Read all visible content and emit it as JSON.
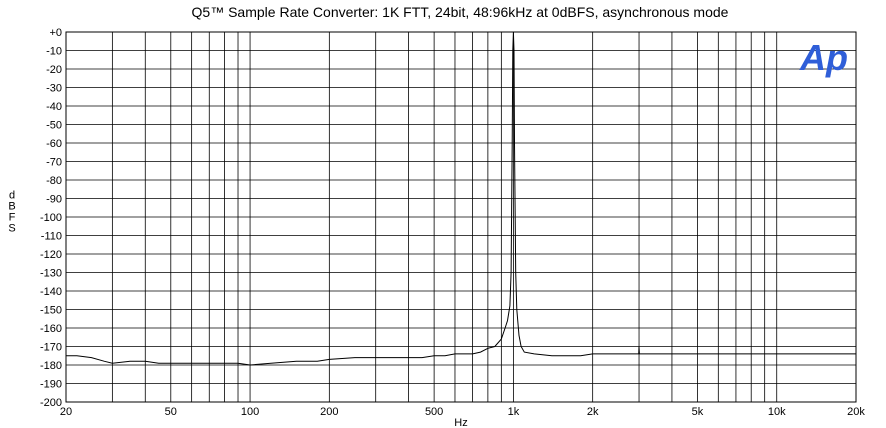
{
  "chart_data": {
    "type": "line",
    "title": "Q5™ Sample Rate Converter: 1K FTT, 24bit, 48:96kHz at 0dBFS, asynchronous mode",
    "xlabel": "Hz",
    "ylabel": "dBFS",
    "x_scale": "log",
    "xlim": [
      20,
      20000
    ],
    "ylim": [
      -200,
      0
    ],
    "grid": true,
    "x_ticks": [
      20,
      50,
      100,
      200,
      500,
      1000,
      2000,
      5000,
      10000,
      20000
    ],
    "x_tick_labels": [
      "20",
      "50",
      "100",
      "200",
      "500",
      "1k",
      "2k",
      "5k",
      "10k",
      "20k"
    ],
    "y_ticks": [
      0,
      -10,
      -20,
      -30,
      -40,
      -50,
      -60,
      -70,
      -80,
      -90,
      -100,
      -110,
      -120,
      -130,
      -140,
      -150,
      -160,
      -170,
      -180,
      -190,
      -200
    ],
    "y_tick_labels": [
      "+0",
      "-10",
      "-20",
      "-30",
      "-40",
      "-50",
      "-60",
      "-70",
      "-80",
      "-90",
      "-100",
      "-110",
      "-120",
      "-130",
      "-140",
      "-150",
      "-160",
      "-170",
      "-180",
      "-190",
      "-200"
    ],
    "logo_text": "Ap",
    "line_color": "#000000",
    "logo_color": "#2f5ed8",
    "series": [
      {
        "x": [
          20,
          22,
          25,
          28,
          30,
          35,
          40,
          45,
          50,
          60,
          70,
          80,
          90,
          100,
          120,
          150,
          180,
          200,
          250,
          300,
          350,
          400,
          450,
          500,
          550,
          600,
          650,
          700,
          750,
          800,
          850,
          900,
          930,
          950,
          970,
          980,
          990,
          995,
          1000,
          1005,
          1010,
          1020,
          1030,
          1050,
          1070,
          1100,
          1200,
          1400,
          1600,
          1800,
          2000,
          2500,
          2990,
          3000,
          3010,
          3500,
          4000,
          5000,
          6000,
          7000,
          8000,
          9000,
          10000,
          12000,
          14000,
          16000,
          18000,
          20000
        ],
        "y": [
          -175,
          -175,
          -176,
          -178,
          -179,
          -178,
          -178,
          -179,
          -179,
          -179,
          -179,
          -179,
          -179,
          -180,
          -179,
          -178,
          -178,
          -177,
          -176,
          -176,
          -176,
          -176,
          -176,
          -175,
          -175,
          -174,
          -174,
          -174,
          -173,
          -171,
          -170,
          -166,
          -160,
          -156,
          -148,
          -130,
          -60,
          -10,
          0,
          -10,
          -60,
          -130,
          -150,
          -164,
          -170,
          -173,
          -174,
          -175,
          -175,
          -175,
          -174,
          -174,
          -174,
          -170,
          -174,
          -174,
          -174,
          -174,
          -174,
          -174,
          -174,
          -174,
          -174,
          -174,
          -174,
          -174,
          -174,
          -174
        ]
      }
    ]
  }
}
